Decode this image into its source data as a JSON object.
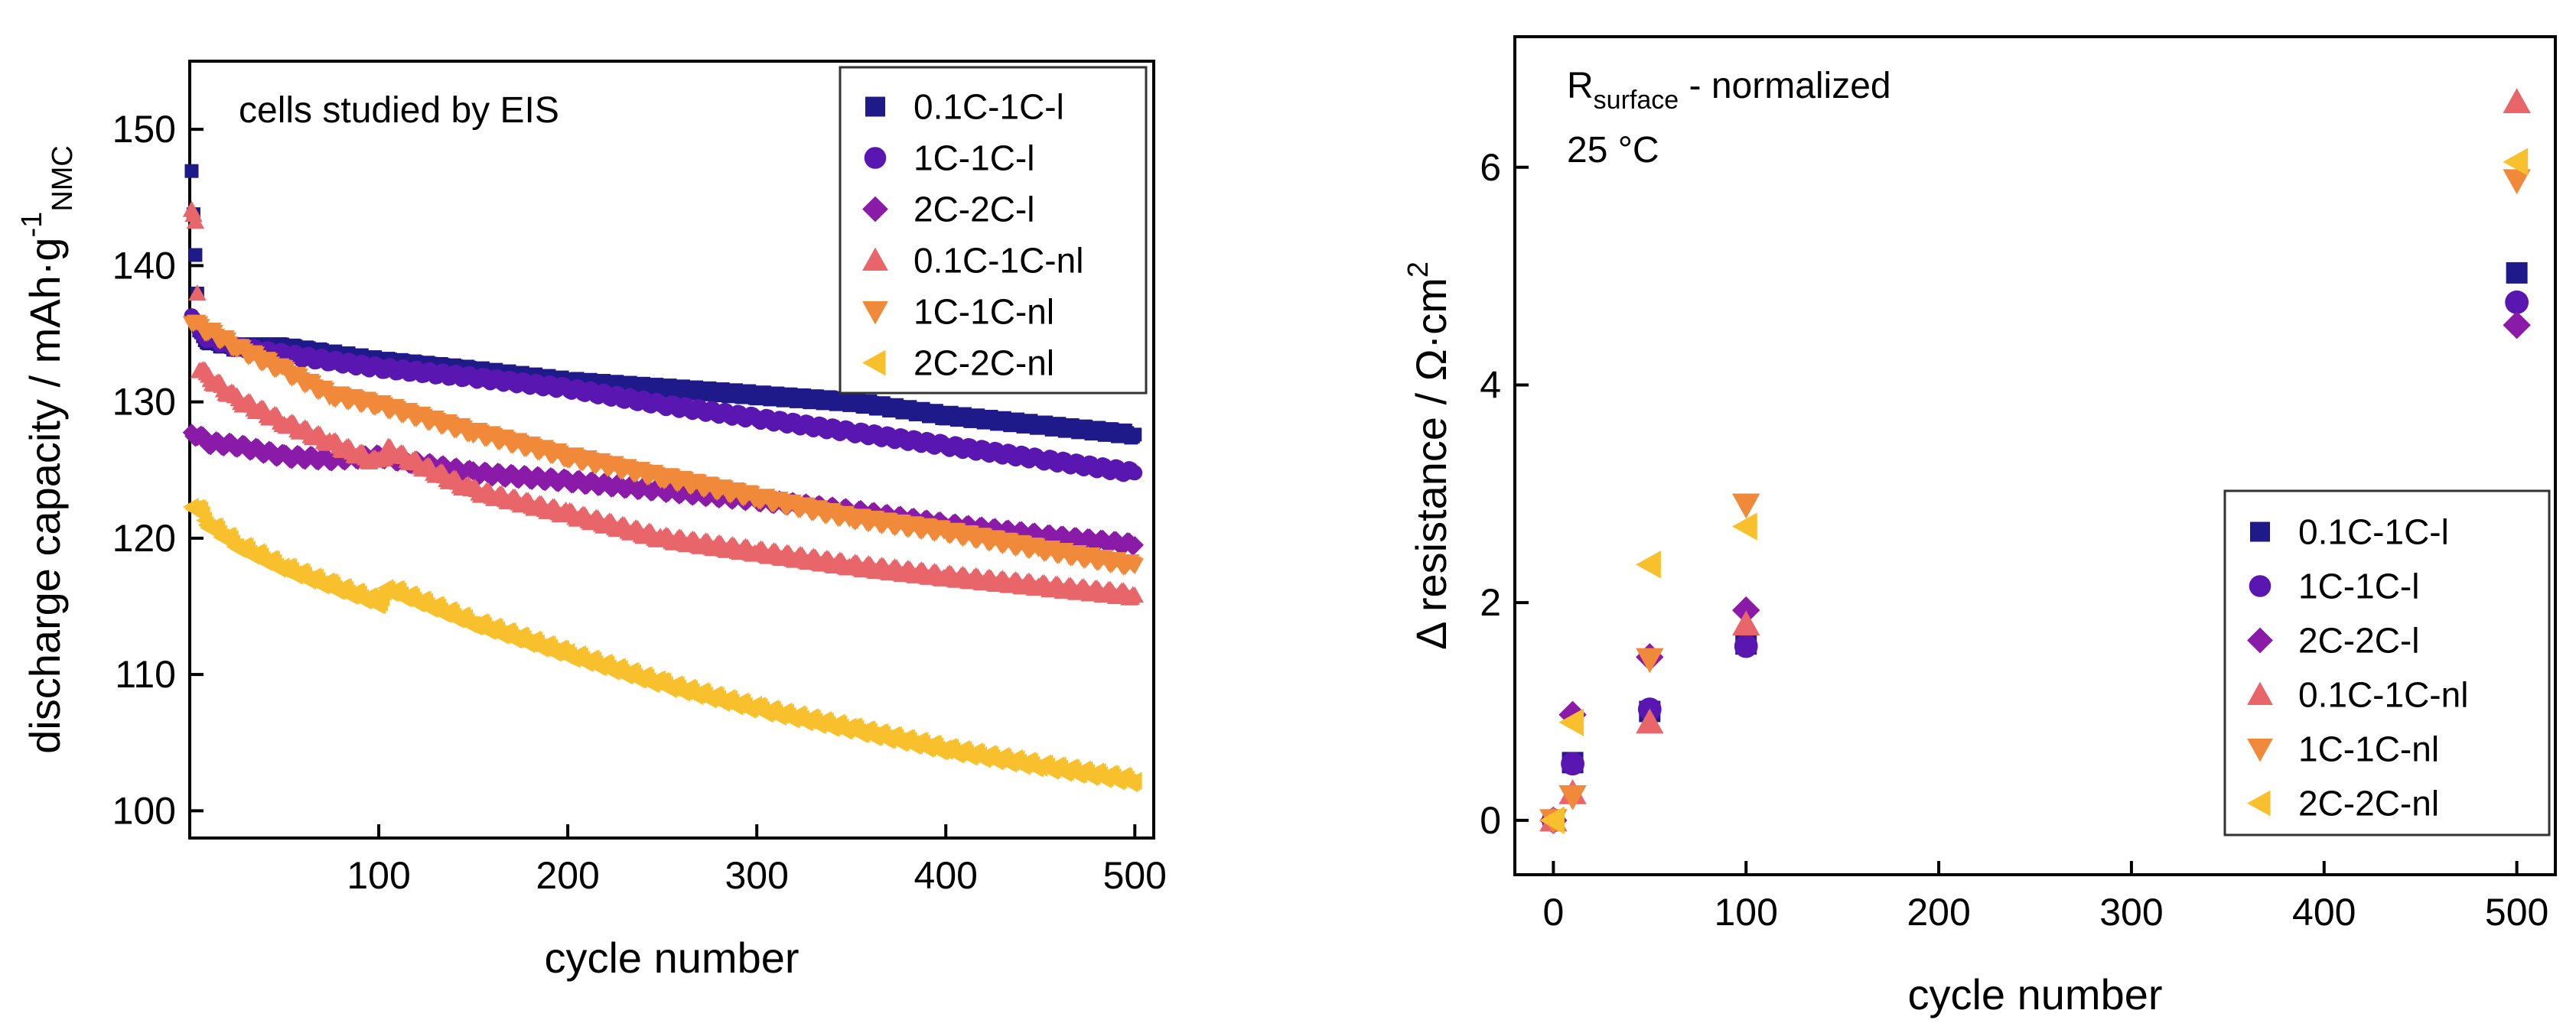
{
  "chart_data": [
    {
      "type": "scatter",
      "annotation": "cells studied by EIS",
      "xlabel": "cycle number",
      "ylabel_main": "discharge capacity / mAh·g",
      "ylabel_sup": "-1",
      "ylabel_sub": "NMC",
      "xlim": [
        0,
        510
      ],
      "ylim": [
        98,
        155
      ],
      "xticks": [
        100,
        200,
        300,
        400,
        500
      ],
      "yticks": [
        100,
        110,
        120,
        130,
        140,
        150
      ],
      "legend_position": "top-right",
      "series": [
        {
          "name": "0.1C-1C-l",
          "marker": "square",
          "color": "#1f1a8a",
          "points": [
            [
              1,
              147
            ],
            [
              5,
              135
            ],
            [
              10,
              134.5
            ],
            [
              25,
              134
            ],
            [
              50,
              134
            ],
            [
              75,
              133.5
            ],
            [
              100,
              133
            ],
            [
              150,
              132.3
            ],
            [
              200,
              131.5
            ],
            [
              250,
              131
            ],
            [
              300,
              130.5
            ],
            [
              350,
              130
            ],
            [
              400,
              129
            ],
            [
              450,
              128.3
            ],
            [
              500,
              127.6
            ]
          ]
        },
        {
          "name": "1C-1C-l",
          "marker": "circle",
          "color": "#5a16b0",
          "points": [
            [
              1,
              136.5
            ],
            [
              5,
              135
            ],
            [
              10,
              134.7
            ],
            [
              25,
              134
            ],
            [
              50,
              133.5
            ],
            [
              75,
              133
            ],
            [
              100,
              132.5
            ],
            [
              150,
              131.8
            ],
            [
              200,
              131
            ],
            [
              250,
              129.8
            ],
            [
              300,
              128.8
            ],
            [
              350,
              127.8
            ],
            [
              400,
              126.8
            ],
            [
              450,
              125.8
            ],
            [
              500,
              124.8
            ]
          ]
        },
        {
          "name": "2C-2C-l",
          "marker": "diamond",
          "color": "#8a1aa8",
          "points": [
            [
              1,
              127.7
            ],
            [
              5,
              127.5
            ],
            [
              10,
              127
            ],
            [
              25,
              126.8
            ],
            [
              50,
              126
            ],
            [
              75,
              125.8
            ],
            [
              100,
              126
            ],
            [
              150,
              124.8
            ],
            [
              200,
              124.2
            ],
            [
              250,
              123.5
            ],
            [
              300,
              122.8
            ],
            [
              350,
              122
            ],
            [
              400,
              121
            ],
            [
              450,
              120.2
            ],
            [
              500,
              119.5
            ]
          ]
        },
        {
          "name": "0.1C-1C-nl",
          "marker": "triangle-up",
          "color": "#e8666a",
          "points": [
            [
              1,
              144
            ],
            [
              3,
              143
            ],
            [
              5,
              132.5
            ],
            [
              10,
              131.8
            ],
            [
              25,
              130.2
            ],
            [
              50,
              128.5
            ],
            [
              75,
              127
            ],
            [
              100,
              125.5
            ],
            [
              105,
              126.5
            ],
            [
              150,
              123.5
            ],
            [
              200,
              121.8
            ],
            [
              250,
              120
            ],
            [
              300,
              119
            ],
            [
              350,
              118
            ],
            [
              400,
              117.2
            ],
            [
              450,
              116.5
            ],
            [
              500,
              115.8
            ]
          ]
        },
        {
          "name": "1C-1C-nl",
          "marker": "triangle-down",
          "color": "#f08a3a",
          "points": [
            [
              1,
              136
            ],
            [
              5,
              135.5
            ],
            [
              10,
              135.2
            ],
            [
              25,
              134
            ],
            [
              50,
              132.3
            ],
            [
              75,
              130.5
            ],
            [
              100,
              129.8
            ],
            [
              150,
              127.8
            ],
            [
              200,
              126
            ],
            [
              250,
              124.5
            ],
            [
              300,
              123
            ],
            [
              350,
              121.5
            ],
            [
              400,
              120.5
            ],
            [
              450,
              119.2
            ],
            [
              500,
              118
            ]
          ]
        },
        {
          "name": "2C-2C-nl",
          "marker": "triangle-left",
          "color": "#f8c02c",
          "points": [
            [
              1,
              122.5
            ],
            [
              5,
              122
            ],
            [
              10,
              121
            ],
            [
              25,
              119.5
            ],
            [
              50,
              117.8
            ],
            [
              75,
              116.5
            ],
            [
              100,
              115.3
            ],
            [
              105,
              116.3
            ],
            [
              150,
              113.8
            ],
            [
              200,
              111.5
            ],
            [
              250,
              109.3
            ],
            [
              300,
              107.5
            ],
            [
              350,
              106
            ],
            [
              400,
              104.5
            ],
            [
              450,
              103.3
            ],
            [
              500,
              102.2
            ]
          ]
        }
      ]
    },
    {
      "type": "scatter",
      "annotation_main": "R",
      "annotation_sub": "surface",
      "annotation_rest": " - normalized",
      "annotation2": "25 °C",
      "xlabel": "cycle number",
      "ylabel_main": "Δ resistance / Ω·cm",
      "ylabel_sup": "2",
      "xlim": [
        -20,
        520
      ],
      "ylim": [
        -0.5,
        7.2
      ],
      "xticks": [
        0,
        100,
        200,
        300,
        400,
        500
      ],
      "yticks": [
        0,
        2,
        4,
        6
      ],
      "legend_position": "bottom-right",
      "series": [
        {
          "name": "0.1C-1C-l",
          "marker": "square",
          "color": "#1f1a8a",
          "points": [
            [
              0,
              0
            ],
            [
              10,
              0.53
            ],
            [
              50,
              1.0
            ],
            [
              100,
              1.62
            ],
            [
              500,
              5.03
            ]
          ]
        },
        {
          "name": "1C-1C-l",
          "marker": "circle",
          "color": "#5a16b0",
          "points": [
            [
              0,
              0
            ],
            [
              10,
              0.52
            ],
            [
              50,
              1.02
            ],
            [
              100,
              1.6
            ],
            [
              500,
              4.76
            ]
          ]
        },
        {
          "name": "2C-2C-l",
          "marker": "diamond",
          "color": "#8a1aa8",
          "points": [
            [
              0,
              0
            ],
            [
              10,
              0.97
            ],
            [
              50,
              1.5
            ],
            [
              100,
              1.93
            ],
            [
              500,
              4.55
            ]
          ]
        },
        {
          "name": "0.1C-1C-nl",
          "marker": "triangle-up",
          "color": "#e8666a",
          "points": [
            [
              0,
              0
            ],
            [
              10,
              0.25
            ],
            [
              50,
              0.9
            ],
            [
              100,
              1.8
            ],
            [
              500,
              6.6
            ]
          ]
        },
        {
          "name": "1C-1C-nl",
          "marker": "triangle-down",
          "color": "#f08a3a",
          "points": [
            [
              0,
              0
            ],
            [
              10,
              0.22
            ],
            [
              50,
              1.48
            ],
            [
              100,
              2.9
            ],
            [
              500,
              5.88
            ]
          ]
        },
        {
          "name": "2C-2C-nl",
          "marker": "triangle-left",
          "color": "#f8c02c",
          "points": [
            [
              0,
              0
            ],
            [
              10,
              0.9
            ],
            [
              50,
              2.35
            ],
            [
              100,
              2.7
            ],
            [
              500,
              6.05
            ]
          ]
        }
      ]
    }
  ]
}
